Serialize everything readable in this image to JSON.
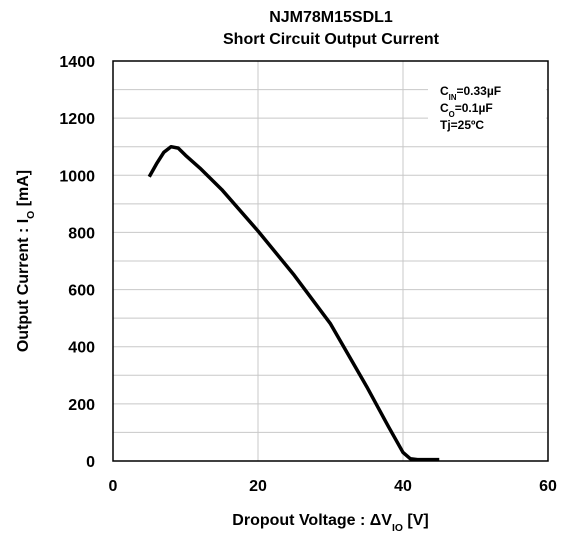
{
  "chart_data": {
    "type": "line",
    "title": [
      "NJM78M15SDL1",
      "Short Circuit Output Current"
    ],
    "xlabel": [
      "Dropout Voltage : ΔV",
      "IO",
      " [V]"
    ],
    "ylabel": [
      "Output Current : I",
      "O",
      " [mA]"
    ],
    "annotations": [
      [
        "C",
        "IN",
        "=0.33µF"
      ],
      [
        "C",
        "O",
        "=0.1µF"
      ],
      [
        "Tj=25ºC"
      ]
    ],
    "x": [
      5,
      6,
      7,
      8,
      9,
      10,
      12,
      15,
      20,
      25,
      30,
      35,
      38,
      40,
      41,
      42,
      45
    ],
    "series": [
      {
        "color": "#000000",
        "values": [
          995,
          1040,
          1080,
          1100,
          1095,
          1070,
          1025,
          950,
          805,
          650,
          480,
          260,
          120,
          30,
          8,
          5,
          5
        ]
      }
    ],
    "xlim": [
      0,
      60
    ],
    "xticks": [
      0,
      20,
      40,
      60
    ],
    "ylim": [
      0,
      1400
    ],
    "yticks": [
      0,
      200,
      400,
      600,
      800,
      1000,
      1200,
      1400
    ],
    "yminorticks": [
      100,
      300,
      500,
      700,
      900,
      1100,
      1300
    ],
    "grid": true
  }
}
